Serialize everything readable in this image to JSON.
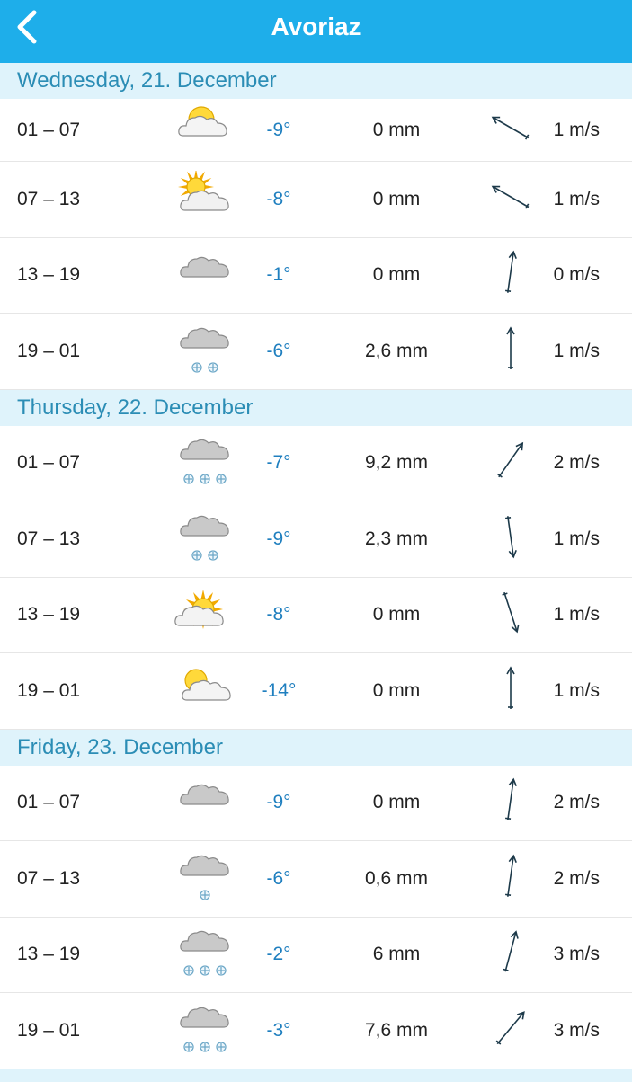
{
  "header": {
    "title": "Avoriaz"
  },
  "days": [
    {
      "title": "Wednesday, 21. December",
      "rows": [
        {
          "time": "01 – 07",
          "temp": "-9°",
          "precip": "0 mm",
          "wind": "1 m/s"
        },
        {
          "time": "07 – 13",
          "temp": "-8°",
          "precip": "0 mm",
          "wind": "1 m/s"
        },
        {
          "time": "13 – 19",
          "temp": "-1°",
          "precip": "0 mm",
          "wind": "0 m/s"
        },
        {
          "time": "19 – 01",
          "temp": "-6°",
          "precip": "2,6 mm",
          "wind": "1 m/s"
        }
      ]
    },
    {
      "title": "Thursday, 22. December",
      "rows": [
        {
          "time": "01 – 07",
          "temp": "-7°",
          "precip": "9,2 mm",
          "wind": "2 m/s"
        },
        {
          "time": "07 – 13",
          "temp": "-9°",
          "precip": "2,3 mm",
          "wind": "1 m/s"
        },
        {
          "time": "13 – 19",
          "temp": "-8°",
          "precip": "0 mm",
          "wind": "1 m/s"
        },
        {
          "time": "19 – 01",
          "temp": "-14°",
          "precip": "0 mm",
          "wind": "1 m/s"
        }
      ]
    },
    {
      "title": "Friday, 23. December",
      "rows": [
        {
          "time": "01 – 07",
          "temp": "-9°",
          "precip": "0 mm",
          "wind": "2 m/s"
        },
        {
          "time": "07 – 13",
          "temp": "-6°",
          "precip": "0,6 mm",
          "wind": "2 m/s"
        },
        {
          "time": "13 – 19",
          "temp": "-2°",
          "precip": "6 mm",
          "wind": "3 m/s"
        },
        {
          "time": "19 – 01",
          "temp": "-3°",
          "precip": "7,6 mm",
          "wind": "3 m/s"
        }
      ]
    }
  ]
}
